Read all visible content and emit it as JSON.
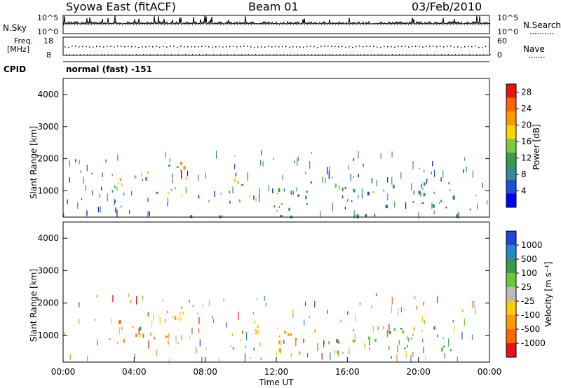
{
  "header": {
    "title": "Syowa East (fitACF)",
    "beam": "Beam 01",
    "date": "03/Feb/2010"
  },
  "top_panel": {
    "left_label": "N.Sky",
    "left_ticks": [
      "10^5",
      "10^0"
    ],
    "right_label": "N.Search",
    "right_ticks": [
      "10^5",
      "10^0"
    ]
  },
  "freq_panel": {
    "left_label": "Freq.",
    "left_unit": "[MHz]",
    "left_ticks": [
      "18",
      "8"
    ],
    "right_label": "Nave",
    "right_ticks": [
      "60",
      "0"
    ]
  },
  "cpid": {
    "label": "CPID",
    "value": "normal (fast) -151"
  },
  "colors": {
    "power": [
      "#0000ff",
      "#1f4fd9",
      "#2f8f8f",
      "#3a9a4a",
      "#7fcc3a",
      "#ffd200",
      "#ff9900",
      "#ff6600",
      "#ee1111"
    ],
    "velocity": [
      "#2244dd",
      "#2288cc",
      "#3a9a4a",
      "#66cc33",
      "#bbbbbb",
      "#ffcc00",
      "#ff9900",
      "#ff6600",
      "#ee1111"
    ]
  },
  "chart_data": [
    {
      "type": "heatmap",
      "title": "",
      "ylabel": "Slant Range [km]",
      "xlabel": "",
      "ylim": [
        180,
        4500
      ],
      "yticks": [
        "1000",
        "2000",
        "3000",
        "4000"
      ],
      "xticks": [],
      "colorbar": {
        "label": "Power [dB]",
        "ticks": [
          "4",
          "8",
          "12",
          "16",
          "20",
          "24",
          "28"
        ],
        "range": [
          0,
          30
        ]
      },
      "regions": [
        {
          "name": "ground-scatter-base",
          "x": [
            0,
            24
          ],
          "y": [
            200,
            300
          ],
          "value": 10
        },
        {
          "name": "patch-03h",
          "x": [
            2.5,
            4.0
          ],
          "y": [
            700,
            1500
          ],
          "value": 12
        },
        {
          "name": "patch-05h",
          "x": [
            4.0,
            7.0
          ],
          "y": [
            800,
            1900
          ],
          "value": 18
        },
        {
          "name": "patch-10h",
          "x": [
            9.0,
            11.0
          ],
          "y": [
            600,
            1400
          ],
          "value": 14
        },
        {
          "name": "band-12h",
          "x": [
            12.0,
            16.0
          ],
          "y": [
            400,
            1300
          ],
          "value": 10
        },
        {
          "name": "band-16h",
          "x": [
            16.0,
            22.0
          ],
          "y": [
            500,
            1300
          ],
          "value": 8
        }
      ]
    },
    {
      "type": "heatmap",
      "title": "",
      "ylabel": "Slant Range [km]",
      "xlabel": "Time UT",
      "ylim": [
        180,
        4500
      ],
      "yticks": [
        "1000",
        "2000",
        "3000",
        "4000"
      ],
      "xticks": [
        "00:00",
        "04:00",
        "08:00",
        "12:00",
        "16:00",
        "20:00",
        "00:00"
      ],
      "colorbar": {
        "label": "Velocity [m s⁻¹]",
        "ticks": [
          "1000",
          "500",
          "100",
          "25",
          "-25",
          "-100",
          "-500",
          "-1000"
        ]
      },
      "regions": [
        {
          "name": "patch-03h",
          "x": [
            2.5,
            4.0
          ],
          "y": [
            700,
            1500
          ],
          "value": -300
        },
        {
          "name": "patch-05h",
          "x": [
            4.0,
            7.0
          ],
          "y": [
            800,
            1900
          ],
          "value": -400
        },
        {
          "name": "patch-10h",
          "x": [
            9.0,
            11.0
          ],
          "y": [
            600,
            1400
          ],
          "value": -150
        },
        {
          "name": "band-12h",
          "x": [
            12.0,
            16.0
          ],
          "y": [
            400,
            1300
          ],
          "value": -200
        },
        {
          "name": "band-16h",
          "x": [
            16.0,
            22.0
          ],
          "y": [
            500,
            1300
          ],
          "value": 100
        }
      ]
    }
  ]
}
